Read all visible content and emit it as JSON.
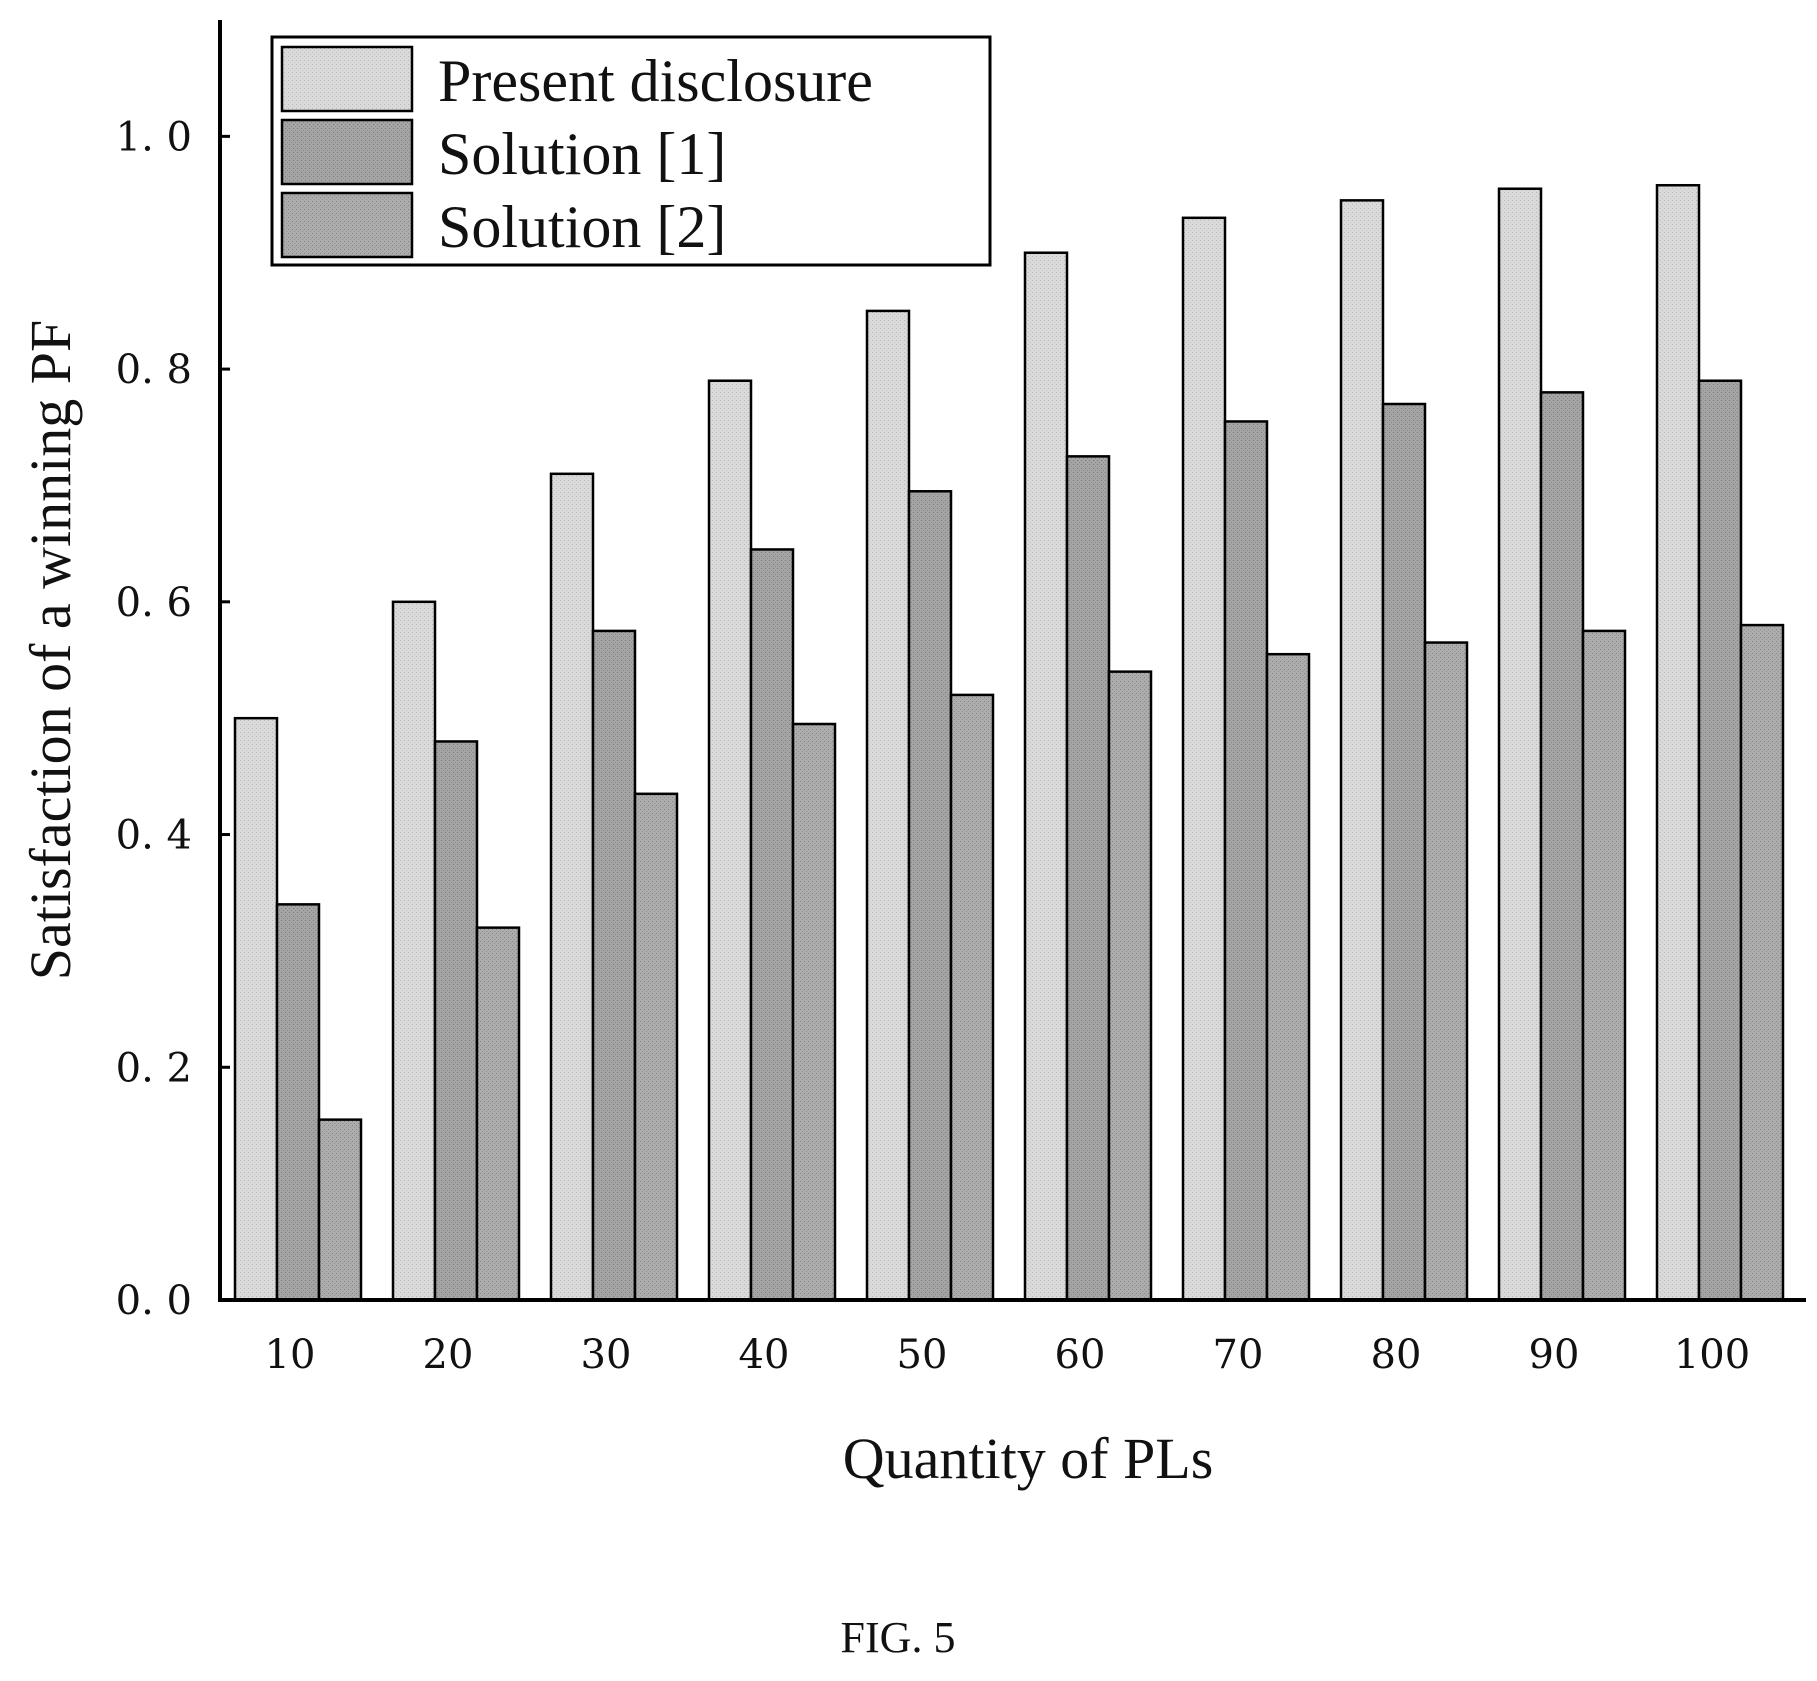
{
  "figure_caption": "FIG. 5",
  "chart_data": {
    "type": "bar",
    "xlabel": "Quantity of PLs",
    "ylabel": "Satisfaction of a winning PF",
    "ylim": [
      0,
      1.1
    ],
    "yticks": [
      "0. 0",
      "0. 2",
      "0. 4",
      "0. 6",
      "0. 8",
      "1. 0"
    ],
    "ytick_values": [
      0,
      0.2,
      0.4,
      0.6,
      0.8,
      1.0
    ],
    "categories": [
      "10",
      "20",
      "30",
      "40",
      "50",
      "60",
      "70",
      "80",
      "90",
      "100"
    ],
    "legend_position": "top-left",
    "series": [
      {
        "name": "Present disclosure",
        "color": "#d6d6d6",
        "values": [
          0.5,
          0.6,
          0.71,
          0.79,
          0.85,
          0.9,
          0.93,
          0.945,
          0.955,
          0.958
        ]
      },
      {
        "name": "Solution [1]",
        "color": "#9e9e9e",
        "values": [
          0.34,
          0.48,
          0.575,
          0.645,
          0.695,
          0.725,
          0.755,
          0.77,
          0.78,
          0.79
        ]
      },
      {
        "name": "Solution [2]",
        "color": "#a6a6a6",
        "values": [
          0.155,
          0.32,
          0.435,
          0.495,
          0.52,
          0.54,
          0.555,
          0.565,
          0.575,
          0.58
        ]
      }
    ]
  }
}
